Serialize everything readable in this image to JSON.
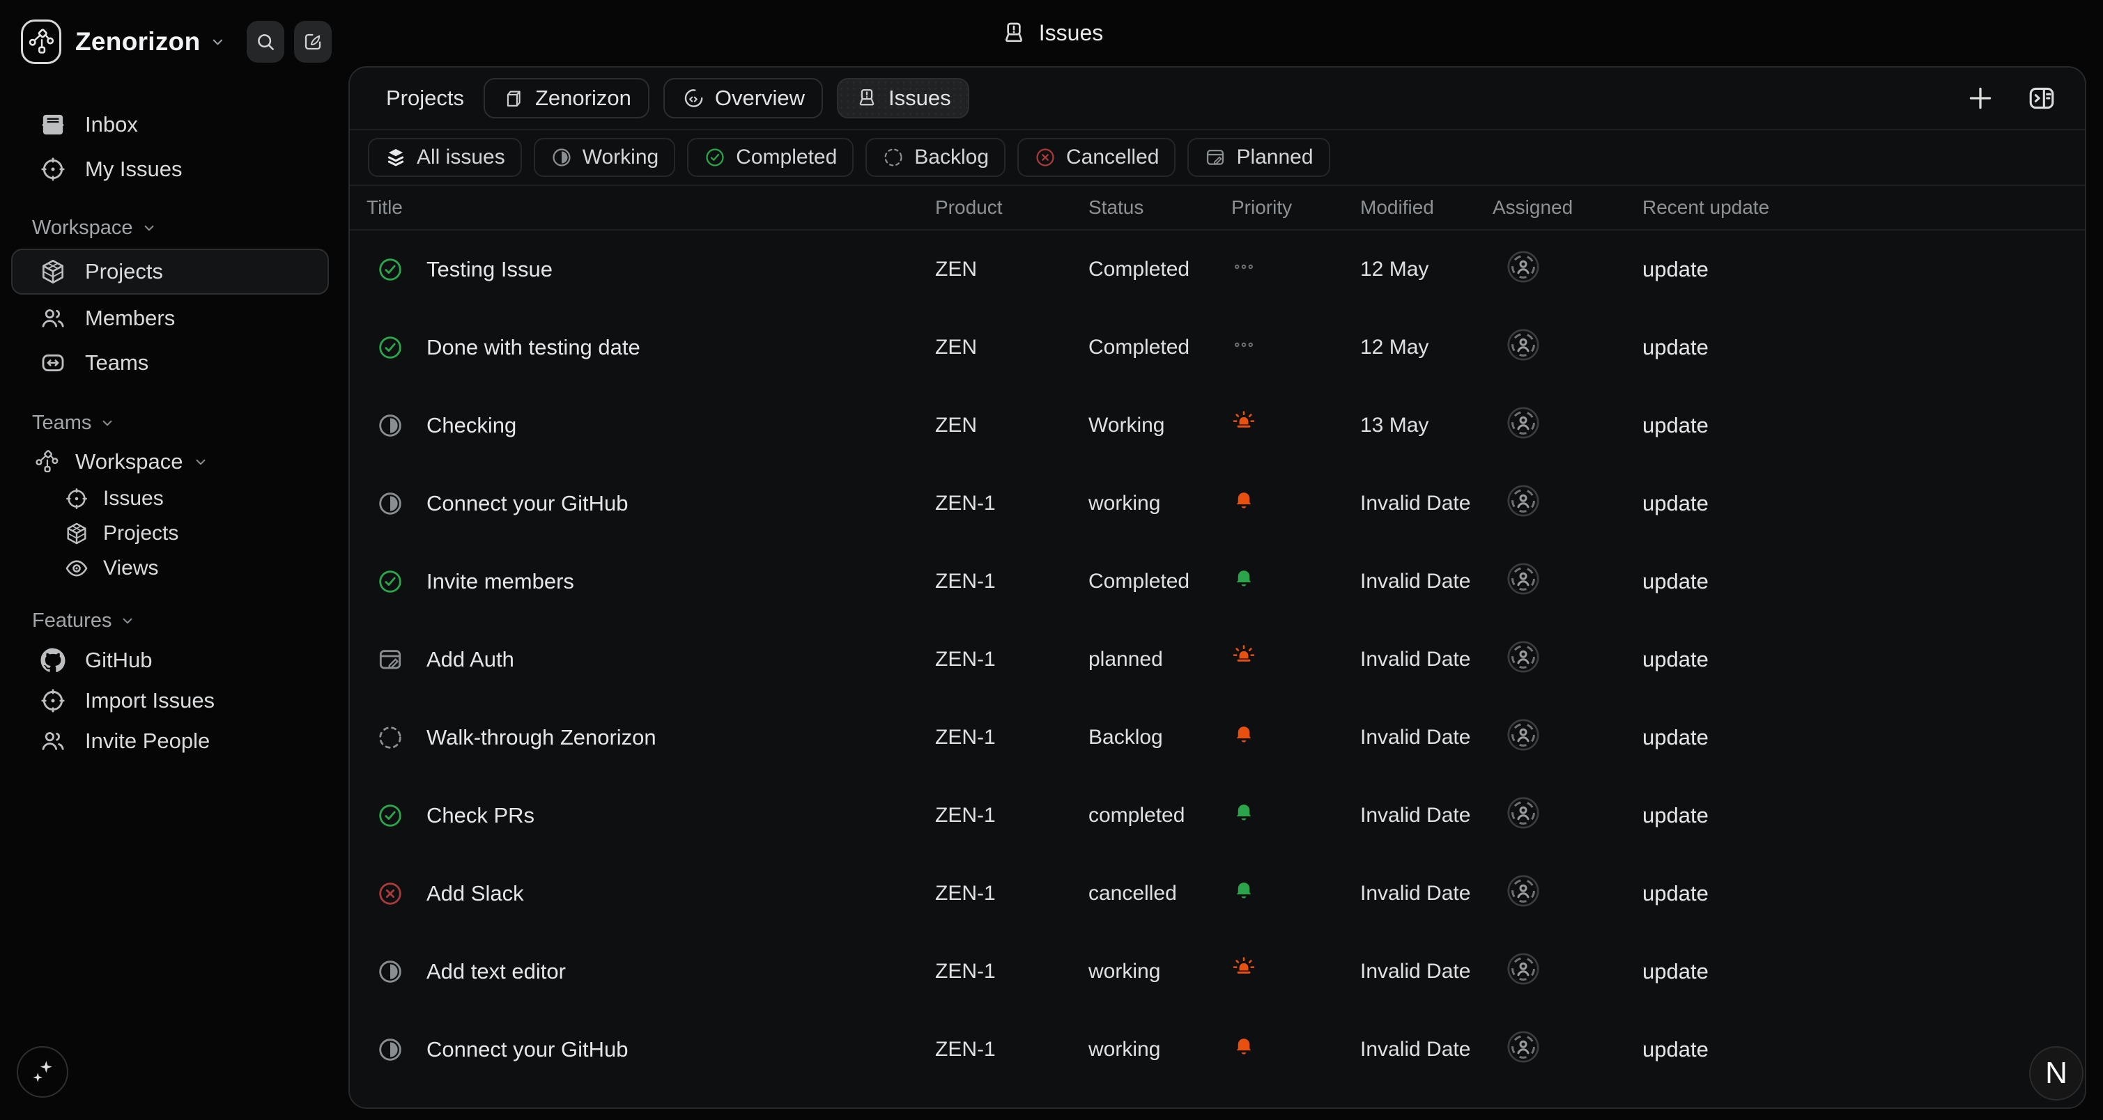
{
  "app": {
    "workspace_name": "Zenorizon"
  },
  "header": {
    "title": "Issues"
  },
  "sidebar": {
    "top_items": [
      {
        "label": "Inbox",
        "icon": "inbox"
      },
      {
        "label": "My Issues",
        "icon": "target"
      }
    ],
    "workspace_section": {
      "label": "Workspace",
      "items": [
        {
          "label": "Projects",
          "icon": "cube",
          "selected": true
        },
        {
          "label": "Members",
          "icon": "users"
        },
        {
          "label": "Teams",
          "icon": "teams"
        }
      ]
    },
    "teams_section": {
      "label": "Teams",
      "group_label": "Workspace",
      "sub_items": [
        {
          "label": "Issues",
          "icon": "target"
        },
        {
          "label": "Projects",
          "icon": "cube"
        },
        {
          "label": "Views",
          "icon": "eye"
        }
      ]
    },
    "features_section": {
      "label": "Features",
      "items": [
        {
          "label": "GitHub",
          "icon": "github"
        },
        {
          "label": "Import Issues",
          "icon": "target"
        },
        {
          "label": "Invite People",
          "icon": "users"
        }
      ]
    }
  },
  "breadcrumb": {
    "root": "Projects",
    "chips": [
      {
        "label": "Zenorizon",
        "icon": "box3d",
        "active": false
      },
      {
        "label": "Overview",
        "icon": "overview",
        "active": false
      },
      {
        "label": "Issues",
        "icon": "laptop",
        "active": true
      }
    ]
  },
  "filters": [
    {
      "label": "All issues",
      "icon": "layers",
      "color": "white"
    },
    {
      "label": "Working",
      "icon": "working",
      "color": "gray"
    },
    {
      "label": "Completed",
      "icon": "completed",
      "color": "green"
    },
    {
      "label": "Backlog",
      "icon": "backlog",
      "color": "gray"
    },
    {
      "label": "Cancelled",
      "icon": "cancelled",
      "color": "red"
    },
    {
      "label": "Planned",
      "icon": "planned",
      "color": "gray"
    }
  ],
  "table": {
    "columns": [
      "Title",
      "Product",
      "Status",
      "Priority",
      "Modified",
      "Assigned",
      "Recent update"
    ],
    "rows": [
      {
        "status_icon": "completed",
        "title": "Testing Issue",
        "product": "ZEN",
        "status": "Completed",
        "priority": "dots",
        "modified": "12 May",
        "recent": "update"
      },
      {
        "status_icon": "completed",
        "title": "Done with testing date",
        "product": "ZEN",
        "status": "Completed",
        "priority": "dots",
        "modified": "12 May",
        "recent": "update"
      },
      {
        "status_icon": "working",
        "title": "Checking",
        "product": "ZEN",
        "status": "Working",
        "priority": "siren",
        "modified": "13 May",
        "recent": "update"
      },
      {
        "status_icon": "working",
        "title": "Connect your GitHub",
        "product": "ZEN-1",
        "status": "working",
        "priority": "bell-orange",
        "modified": "Invalid Date",
        "recent": "update"
      },
      {
        "status_icon": "completed",
        "title": "Invite members",
        "product": "ZEN-1",
        "status": "Completed",
        "priority": "bell-green",
        "modified": "Invalid Date",
        "recent": "update"
      },
      {
        "status_icon": "planned",
        "title": "Add Auth",
        "product": "ZEN-1",
        "status": "planned",
        "priority": "siren",
        "modified": "Invalid Date",
        "recent": "update"
      },
      {
        "status_icon": "backlog",
        "title": "Walk-through Zenorizon",
        "product": "ZEN-1",
        "status": "Backlog",
        "priority": "bell-orange",
        "modified": "Invalid Date",
        "recent": "update"
      },
      {
        "status_icon": "completed",
        "title": "Check PRs",
        "product": "ZEN-1",
        "status": "completed",
        "priority": "bell-green",
        "modified": "Invalid Date",
        "recent": "update"
      },
      {
        "status_icon": "cancelled",
        "title": "Add Slack",
        "product": "ZEN-1",
        "status": "cancelled",
        "priority": "bell-green",
        "modified": "Invalid Date",
        "recent": "update"
      },
      {
        "status_icon": "working",
        "title": "Add text editor",
        "product": "ZEN-1",
        "status": "working",
        "priority": "siren",
        "modified": "Invalid Date",
        "recent": "update"
      },
      {
        "status_icon": "working",
        "title": "Connect your GitHub",
        "product": "ZEN-1",
        "status": "working",
        "priority": "bell-orange",
        "modified": "Invalid Date",
        "recent": "update"
      }
    ]
  },
  "footer": {
    "nextjs_badge": "N"
  },
  "colors": {
    "status_green": "#2ca44a",
    "priority_orange": "#e8500f",
    "cancelled_red": "#a83a3a",
    "panel_background": "#0d0f10",
    "page_background": "#060607"
  }
}
